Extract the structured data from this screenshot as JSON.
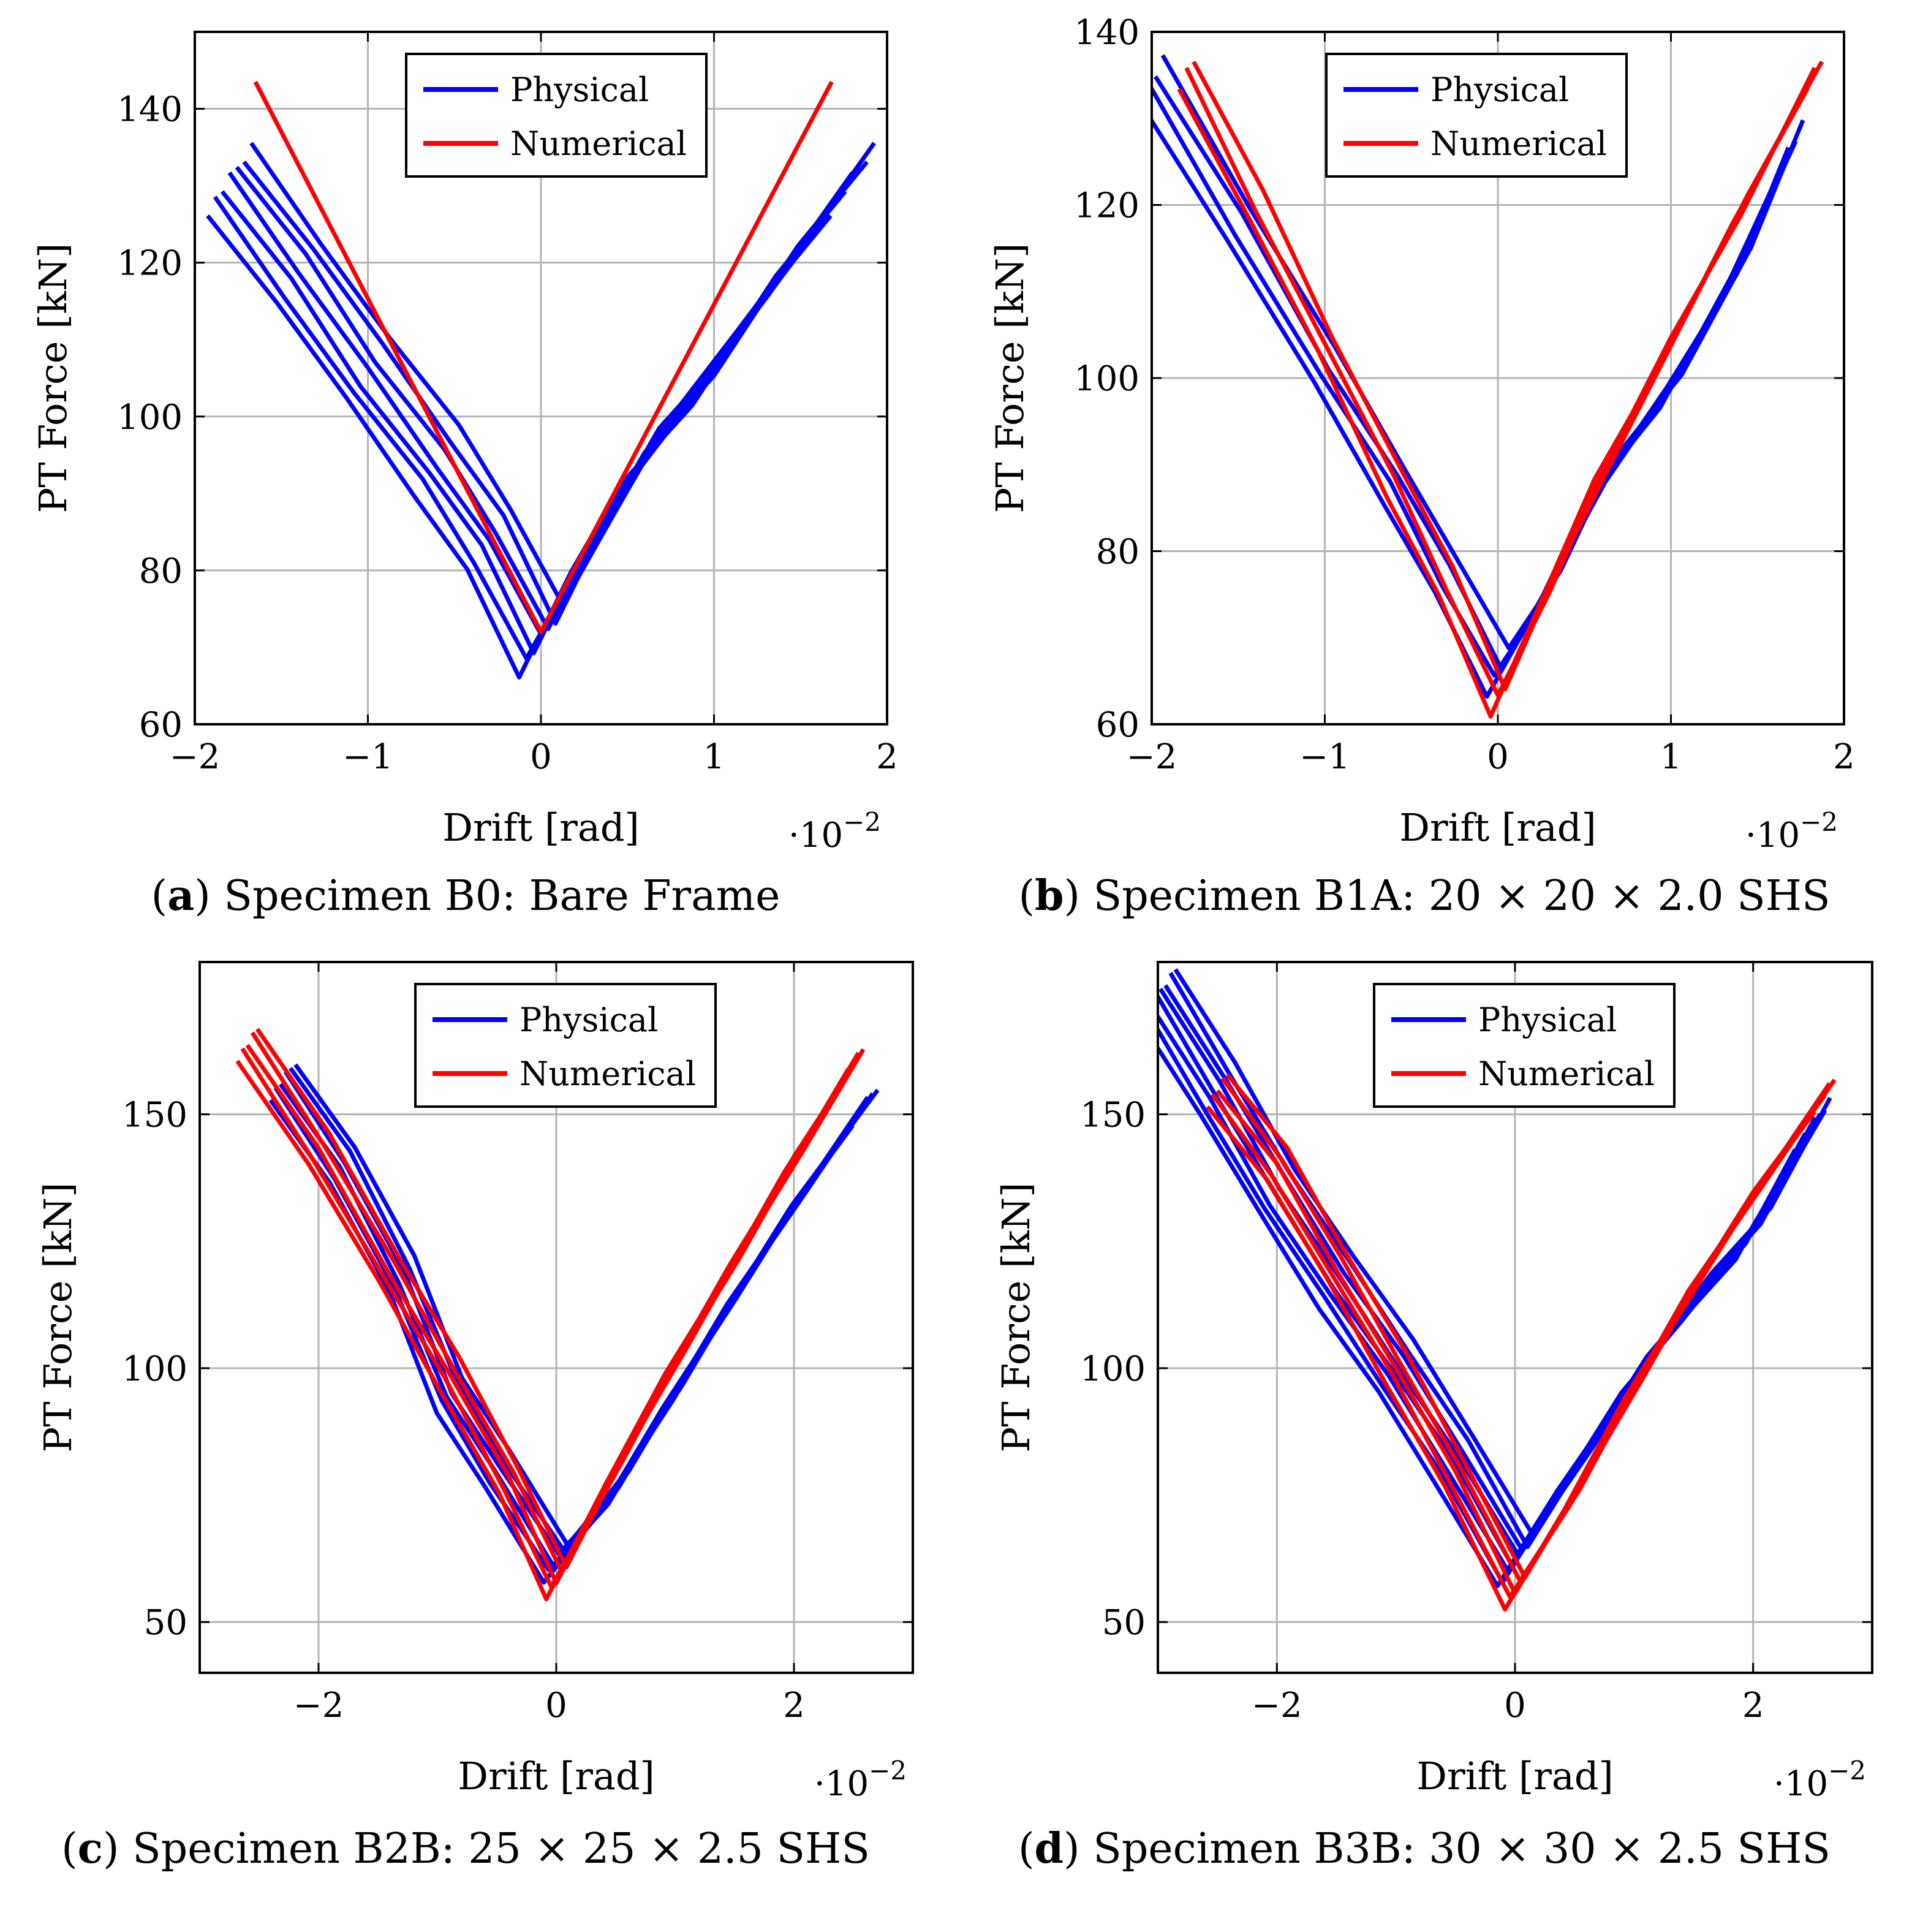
{
  "chart_data": [
    {
      "id": "a",
      "type": "line",
      "caption_letter": "a",
      "caption_text": "Specimen B0: Bare Frame",
      "xlabel": "Drift [rad]",
      "ylabel": "PT Force [kN]",
      "x_multiplier": "·10",
      "x_exponent": "−2",
      "xlim": [
        -2,
        2
      ],
      "ylim": [
        60,
        150
      ],
      "xticks": [
        -2,
        -1,
        0,
        1,
        2
      ],
      "yticks": [
        60,
        80,
        100,
        120,
        140
      ],
      "xtick_labels": [
        "−2",
        "−1",
        "0",
        "1",
        "2"
      ],
      "ytick_labels": [
        "60",
        "80",
        "100",
        "120",
        "140"
      ],
      "grid": true,
      "legend": {
        "placement": "top-center",
        "entries": [
          "Physical",
          "Numerical"
        ]
      },
      "colors": {
        "physical": "#0000ff",
        "numerical": "#ff0000"
      },
      "series": [
        {
          "name": "Physical",
          "band": true,
          "thickness": 7,
          "x": [
            -1.8,
            -1.4,
            -1.0,
            -0.6,
            -0.3,
            0.0,
            0.3,
            0.6,
            1.0,
            1.4,
            1.8
          ],
          "y": [
            131,
            119,
            106,
            94,
            84,
            71,
            84,
            95,
            106,
            119,
            131
          ]
        },
        {
          "name": "Numerical",
          "x": [
            -1.65,
            0.0,
            1.68
          ],
          "y": [
            143.5,
            72,
            143.5
          ]
        }
      ]
    },
    {
      "id": "b",
      "type": "line",
      "caption_letter": "b",
      "caption_text": "Specimen B1A: 20 × 20 × 2.0 SHS",
      "xlabel": "Drift [rad]",
      "ylabel": "PT Force [kN]",
      "x_multiplier": "·10",
      "x_exponent": "−2",
      "xlim": [
        -2,
        2
      ],
      "ylim": [
        60,
        140
      ],
      "xticks": [
        -2,
        -1,
        0,
        1,
        2
      ],
      "yticks": [
        60,
        80,
        100,
        120,
        140
      ],
      "xtick_labels": [
        "−2",
        "−1",
        "0",
        "1",
        "2"
      ],
      "ytick_labels": [
        "60",
        "80",
        "100",
        "120",
        "140"
      ],
      "grid": true,
      "legend": {
        "placement": "top-center",
        "entries": [
          "Physical",
          "Numerical"
        ]
      },
      "colors": {
        "physical": "#0000ff",
        "numerical": "#ff0000"
      },
      "series": [
        {
          "name": "Physical",
          "band": true,
          "thickness": 4,
          "x": [
            -2.0,
            -1.5,
            -1.0,
            -0.6,
            -0.3,
            0.0,
            0.3,
            0.6,
            1.0,
            1.4,
            1.7
          ],
          "y": [
            134.5,
            118,
            101,
            88,
            77,
            66,
            76,
            88,
            99,
            113,
            127
          ]
        },
        {
          "name": "Numerical",
          "band": true,
          "thickness": 3,
          "x": [
            -1.8,
            -1.4,
            -1.0,
            -0.6,
            -0.3,
            0.0,
            0.3,
            0.6,
            1.0,
            1.4,
            1.83
          ],
          "y": [
            135.5,
            120,
            104,
            88,
            76,
            63,
            76,
            89,
            104,
            119,
            135.5
          ]
        }
      ]
    },
    {
      "id": "c",
      "type": "line",
      "caption_letter": "c",
      "caption_text": "Specimen B2B: 25 × 25 × 2.5 SHS",
      "xlabel": "Drift [rad]",
      "ylabel": "PT Force [kN]",
      "x_multiplier": "·10",
      "x_exponent": "−2",
      "xlim": [
        -3,
        3
      ],
      "ylim": [
        40,
        180
      ],
      "xticks": [
        -2,
        0,
        2
      ],
      "yticks": [
        50,
        100,
        150
      ],
      "xtick_labels": [
        "−2",
        "0",
        "2"
      ],
      "ytick_labels": [
        "50",
        "100",
        "150"
      ],
      "grid": true,
      "legend": {
        "placement": "top-center",
        "entries": [
          "Physical",
          "Numerical"
        ]
      },
      "colors": {
        "physical": "#0000ff",
        "numerical": "#ff0000"
      },
      "series": [
        {
          "name": "Physical",
          "band": true,
          "thickness": 6,
          "x": [
            -2.3,
            -1.8,
            -1.3,
            -0.9,
            -0.5,
            0.0,
            0.5,
            1.0,
            1.5,
            2.0,
            2.6
          ],
          "y": [
            157,
            140,
            118,
            95,
            80,
            62,
            76,
            95,
            114,
            132,
            152
          ]
        },
        {
          "name": "Numerical",
          "band": true,
          "thickness": 5,
          "x": [
            -2.6,
            -2.0,
            -1.4,
            -0.9,
            -0.4,
            0.0,
            0.5,
            1.0,
            1.5,
            2.0,
            2.5
          ],
          "y": [
            164,
            143,
            119,
            99,
            78,
            58,
            80,
            101,
            121,
            141,
            160
          ]
        }
      ]
    },
    {
      "id": "d",
      "type": "line",
      "caption_letter": "d",
      "caption_text": "Specimen B3B: 30 × 30 × 2.5 SHS",
      "xlabel": "Drift [rad]",
      "ylabel": "PT Force [kN]",
      "x_multiplier": "·10",
      "x_exponent": "−2",
      "xlim": [
        -3,
        3
      ],
      "ylim": [
        40,
        180
      ],
      "xticks": [
        -2,
        0,
        2
      ],
      "yticks": [
        50,
        100,
        150
      ],
      "xtick_labels": [
        "−2",
        "0",
        "2"
      ],
      "ytick_labels": [
        "50",
        "100",
        "150"
      ],
      "grid": true,
      "legend": {
        "placement": "top-center",
        "entries": [
          "Physical",
          "Numerical"
        ]
      },
      "colors": {
        "physical": "#0000ff",
        "numerical": "#ff0000"
      },
      "series": [
        {
          "name": "Physical",
          "band": true,
          "thickness": 8,
          "x": [
            -3.0,
            -2.5,
            -2.0,
            -1.5,
            -1.0,
            -0.5,
            0.0,
            0.5,
            1.0,
            1.5,
            2.0,
            2.5
          ],
          "y": [
            174,
            155,
            135,
            117,
            100,
            82,
            62,
            80,
            98,
            113,
            127,
            148
          ]
        },
        {
          "name": "Numerical",
          "band": true,
          "thickness": 5,
          "x": [
            -2.5,
            -2.0,
            -1.5,
            -1.0,
            -0.5,
            0.0,
            0.5,
            1.0,
            1.5,
            2.0,
            2.6
          ],
          "y": [
            155,
            140,
            120,
            100,
            79,
            56,
            75,
            96,
            116,
            134,
            154
          ]
        }
      ]
    }
  ]
}
